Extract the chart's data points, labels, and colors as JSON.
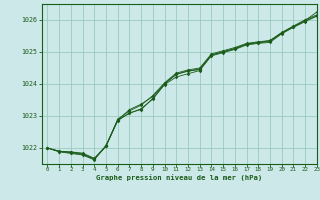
{
  "title": "Graphe pression niveau de la mer (hPa)",
  "bg_color": "#cce8e8",
  "line_color": "#1a5c1a",
  "grid_color": "#99ccbb",
  "xlim": [
    -0.5,
    23
  ],
  "ylim": [
    1021.5,
    1026.5
  ],
  "yticks": [
    1022,
    1023,
    1024,
    1025,
    1026
  ],
  "xticks": [
    0,
    1,
    2,
    3,
    4,
    5,
    6,
    7,
    8,
    9,
    10,
    11,
    12,
    13,
    14,
    15,
    16,
    17,
    18,
    19,
    20,
    21,
    22,
    23
  ],
  "series": [
    [
      1022.0,
      1021.9,
      1021.85,
      1021.8,
      1021.65,
      1022.05,
      1022.85,
      1023.1,
      1023.2,
      1023.55,
      1024.0,
      1024.3,
      1024.4,
      1024.45,
      1024.9,
      1025.0,
      1025.1,
      1025.25,
      1025.3,
      1025.35,
      1025.6,
      1025.8,
      1025.98,
      1026.25
    ],
    [
      1022.0,
      1021.88,
      1021.83,
      1021.78,
      1021.63,
      1022.08,
      1022.88,
      1023.08,
      1023.23,
      1023.53,
      1023.98,
      1024.22,
      1024.32,
      1024.42,
      1024.88,
      1024.98,
      1025.08,
      1025.22,
      1025.27,
      1025.3,
      1025.57,
      1025.77,
      1025.95,
      1026.12
    ],
    [
      1022.0,
      1021.9,
      1021.88,
      1021.84,
      1021.68,
      1022.06,
      1022.9,
      1023.16,
      1023.34,
      1023.64,
      1024.04,
      1024.34,
      1024.44,
      1024.5,
      1024.94,
      1025.04,
      1025.14,
      1025.27,
      1025.32,
      1025.36,
      1025.61,
      1025.81,
      1026.01,
      1026.16
    ],
    [
      1022.0,
      1021.89,
      1021.87,
      1021.82,
      1021.66,
      1022.07,
      1022.87,
      1023.2,
      1023.37,
      1023.61,
      1024.01,
      1024.31,
      1024.41,
      1024.47,
      1024.91,
      1025.01,
      1025.11,
      1025.24,
      1025.29,
      1025.33,
      1025.58,
      1025.78,
      1025.97,
      1026.13
    ]
  ]
}
